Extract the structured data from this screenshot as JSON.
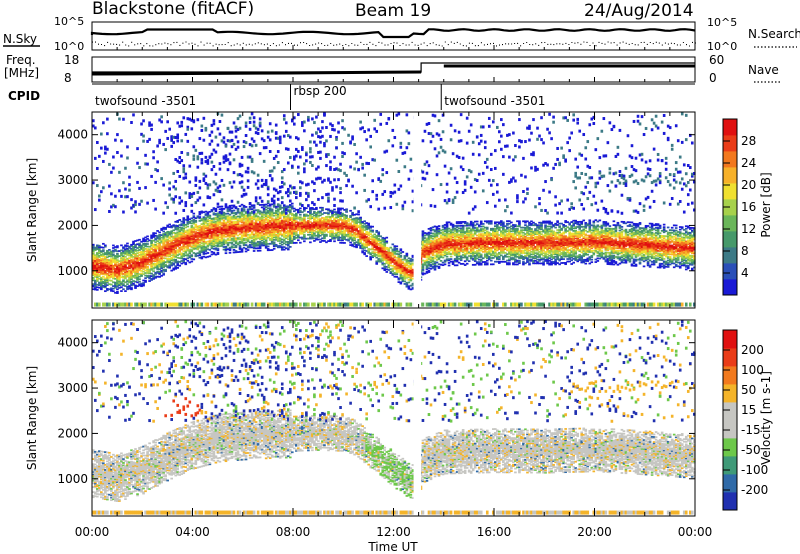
{
  "header": {
    "station": "Blackstone (fitACF)",
    "beam": "Beam 19",
    "date": "24/Aug/2014"
  },
  "status_panels": {
    "nsky_label": "N.Sky",
    "nsky_ticks": [
      "10^5",
      "10^0"
    ],
    "nsearch_label": "N.Search",
    "nsearch_ticks": [
      "10^5",
      "10^0"
    ],
    "freq_label_line1": "Freq.",
    "freq_label_line2": "[MHz]",
    "freq_ticks": [
      "18",
      "8"
    ],
    "nave_label": "Nave",
    "nave_ticks": [
      "60",
      "0"
    ],
    "cpid_label": "CPID",
    "cpid_segments": [
      {
        "label": "twofsound -3501",
        "start_hour": 0.0
      },
      {
        "label": "rbsp 200",
        "start_hour": 7.9
      },
      {
        "label": "twofsound -3501",
        "start_hour": 13.9
      }
    ]
  },
  "axes": {
    "y_label": "Slant Range [km]",
    "y_ticks": [
      "4000",
      "3000",
      "2000",
      "1000"
    ],
    "x_label": "Time UT",
    "x_ticks": [
      "00:00",
      "04:00",
      "08:00",
      "12:00",
      "16:00",
      "20:00",
      "00:00"
    ]
  },
  "colorbars": {
    "power": {
      "title": "Power [dB]",
      "ticks": [
        "28",
        "24",
        "20",
        "16",
        "12",
        "8",
        "4"
      ],
      "colors": [
        "#1a1ad6",
        "#2a4fb8",
        "#3c7a86",
        "#46996a",
        "#6ab65a",
        "#a7d14c",
        "#f0e030",
        "#f7b12a",
        "#f2781e",
        "#ea3c18",
        "#e01010"
      ]
    },
    "velocity": {
      "title": "Velocity [m s-1]",
      "ticks": [
        "200",
        "100",
        "50",
        "15",
        "-15",
        "-50",
        "-100",
        "-200"
      ],
      "colors": [
        "#2030b0",
        "#2f6aa8",
        "#3f9a78",
        "#6dc84a",
        "#c6c6c2",
        "#c6c6c2",
        "#f4b42a",
        "#f27a1e",
        "#ea3c18",
        "#e01010"
      ]
    }
  },
  "chart_data": [
    {
      "type": "heatmap",
      "title": "Power [dB]",
      "xlabel": "Time UT",
      "ylabel": "Slant Range [km]",
      "xlim_hours": [
        0,
        24
      ],
      "ylim": [
        180,
        4500
      ],
      "zlim": [
        0,
        30
      ],
      "note_backscatter_center_km": [
        [
          0.0,
          1120
        ],
        [
          1.0,
          1030
        ],
        [
          2.0,
          1200
        ],
        [
          3.0,
          1500
        ],
        [
          4.0,
          1750
        ],
        [
          5.0,
          1900
        ],
        [
          6.0,
          1950
        ],
        [
          7.0,
          1980
        ],
        [
          8.0,
          2000
        ],
        [
          9.0,
          2020
        ],
        [
          10.0,
          2000
        ],
        [
          10.5,
          1900
        ],
        [
          11.0,
          1650
        ],
        [
          11.5,
          1450
        ],
        [
          12.0,
          1200
        ],
        [
          12.5,
          1000
        ],
        [
          12.9,
          930
        ],
        [
          13.1,
          1400
        ],
        [
          14.0,
          1600
        ],
        [
          16.0,
          1630
        ],
        [
          18.0,
          1620
        ],
        [
          20.0,
          1650
        ],
        [
          22.0,
          1580
        ],
        [
          24.0,
          1500
        ]
      ],
      "peak_power_db": 30
    },
    {
      "type": "heatmap",
      "title": "Velocity [m s-1]",
      "xlabel": "Time UT",
      "ylabel": "Slant Range [km]",
      "xlim_hours": [
        0,
        24
      ],
      "ylim": [
        180,
        4500
      ],
      "zlim": [
        -250,
        250
      ],
      "dominant_velocity_ms": 0
    }
  ]
}
